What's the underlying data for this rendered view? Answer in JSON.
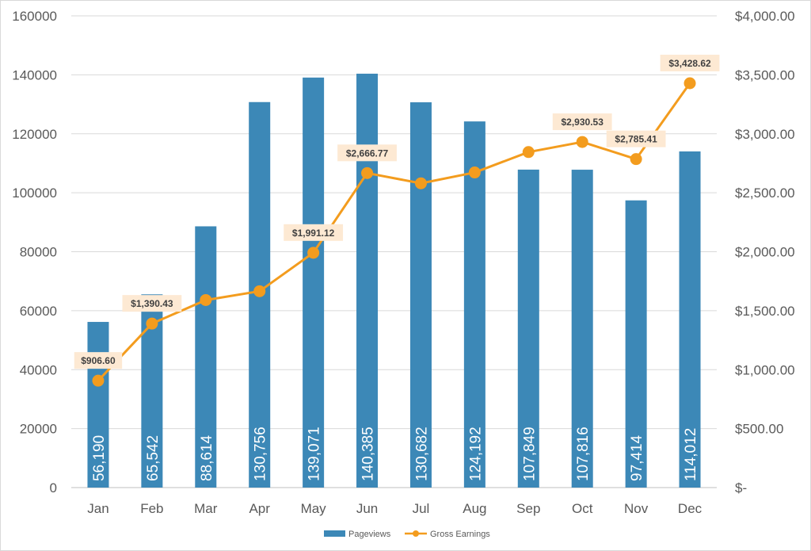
{
  "chart_data": {
    "type": "bar",
    "categories": [
      "Jan",
      "Feb",
      "Mar",
      "Apr",
      "May",
      "Jun",
      "Jul",
      "Aug",
      "Sep",
      "Oct",
      "Nov",
      "Dec"
    ],
    "series": [
      {
        "name": "Pageviews",
        "type": "bar",
        "axis": "left",
        "color": "#3C88B7",
        "values": [
          56190,
          65542,
          88614,
          130756,
          139071,
          140385,
          130682,
          124192,
          107849,
          107816,
          97414,
          114012
        ],
        "data_labels": [
          "56,190",
          "65,542",
          "88,614",
          "130,756",
          "139,071",
          "140,385",
          "130,682",
          "124,192",
          "107,849",
          "107,816",
          "97,414",
          "114,012"
        ]
      },
      {
        "name": "Gross Earnings",
        "type": "line",
        "axis": "right",
        "color": "#F39C1E",
        "values": [
          906.6,
          1390.43,
          1590,
          1665,
          1991.12,
          2666.77,
          2580,
          2672,
          2845,
          2930.53,
          2785.41,
          3428.62
        ],
        "data_labels": [
          "$906.60",
          "$1,390.43",
          null,
          null,
          "$1,991.12",
          "$2,666.77",
          null,
          null,
          null,
          "$2,930.53",
          "$2,785.41",
          "$3,428.62"
        ]
      }
    ],
    "left_axis": {
      "ylim": [
        0,
        160000
      ],
      "ticks": [
        0,
        20000,
        40000,
        60000,
        80000,
        100000,
        120000,
        140000,
        160000
      ],
      "tick_labels": [
        "0",
        "20000",
        "40000",
        "60000",
        "80000",
        "100000",
        "120000",
        "140000",
        "160000"
      ]
    },
    "right_axis": {
      "ylim": [
        0,
        4000
      ],
      "ticks": [
        0,
        500,
        1000,
        1500,
        2000,
        2500,
        3000,
        3500,
        4000
      ],
      "tick_labels": [
        "$-",
        "$500.00",
        "$1,000.00",
        "$1,500.00",
        "$2,000.00",
        "$2,500.00",
        "$3,000.00",
        "$3,500.00",
        "$4,000.00"
      ]
    },
    "grid": true,
    "legend_position": "bottom",
    "title": "",
    "xlabel": "",
    "ylabel": ""
  }
}
